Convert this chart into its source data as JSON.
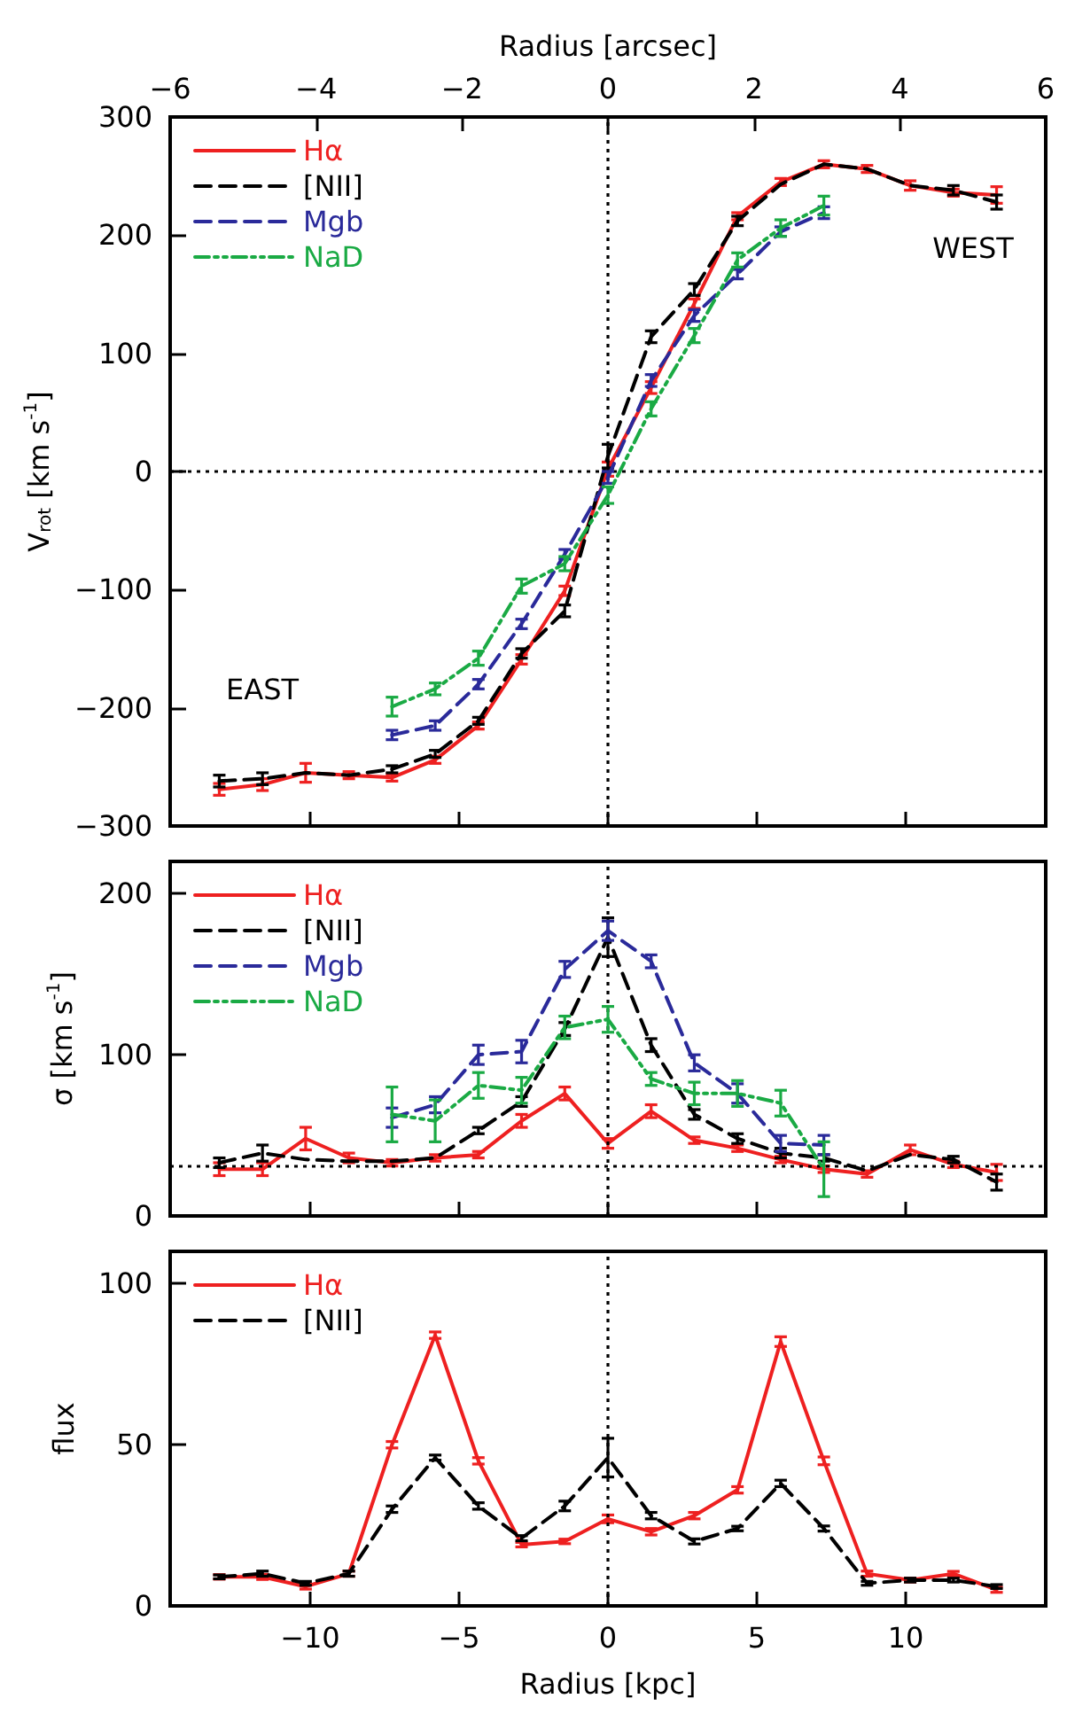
{
  "chart_data": [
    {
      "type": "line",
      "ylabel": "V$_{rot}$ [km s$^{-1}$]",
      "x2label": "Radius [arcsec]",
      "x": [
        -13.05,
        -11.6,
        -10.15,
        -8.7,
        -7.25,
        -5.8,
        -4.35,
        -2.9,
        -1.45,
        0,
        1.45,
        2.9,
        4.35,
        5.8,
        7.25,
        8.7,
        10.15,
        11.6,
        13.05
      ],
      "series": [
        {
          "name": "Hα",
          "color": "#ee2020",
          "line_style": "solid",
          "values": [
            -269,
            -265,
            -255,
            -257,
            -259,
            -244,
            -215,
            -159,
            -101,
            2,
            71,
            142,
            216,
            245,
            260,
            256,
            242,
            236,
            234
          ],
          "errors": [
            5,
            5,
            8,
            3,
            3,
            3,
            3,
            4,
            4,
            6,
            5,
            4,
            3,
            3,
            3,
            3,
            4,
            3,
            7
          ]
        },
        {
          "name": "[NII]",
          "color": "#000000",
          "line_style": "dashed",
          "values": [
            -262,
            -260,
            -255,
            -257,
            -252,
            -239,
            -211,
            -154,
            -118,
            13,
            114,
            154,
            212,
            243,
            260,
            256,
            242,
            238,
            228
          ],
          "errors": [
            5,
            5,
            null,
            null,
            3,
            3,
            3,
            4,
            5,
            10,
            5,
            5,
            4,
            null,
            null,
            null,
            null,
            4,
            6
          ]
        },
        {
          "name": "Mgb",
          "color": "#2a2a9a",
          "line_style": "dashed",
          "values": [
            null,
            null,
            null,
            null,
            -223,
            -215,
            -180,
            -129,
            -70,
            -5,
            77,
            132,
            167,
            203,
            219,
            null,
            null,
            null,
            null
          ],
          "errors": [
            null,
            null,
            null,
            null,
            4,
            4,
            4,
            4,
            4,
            5,
            5,
            5,
            4,
            4,
            5,
            null,
            null,
            null,
            null
          ]
        },
        {
          "name": "NaD",
          "color": "#1aaa44",
          "line_style": "dashdot",
          "values": [
            null,
            null,
            null,
            null,
            -199,
            -184,
            -158,
            -97,
            -78,
            -20,
            53,
            115,
            179,
            206,
            225,
            null,
            null,
            null,
            null
          ],
          "errors": [
            null,
            null,
            null,
            null,
            8,
            5,
            6,
            6,
            6,
            7,
            6,
            6,
            6,
            7,
            8,
            null,
            null,
            null,
            null
          ]
        }
      ],
      "xlim": [
        -14.7,
        14.7
      ],
      "xticks": [
        -10,
        -5,
        0,
        5,
        10
      ],
      "x2lim": [
        -6,
        6
      ],
      "x2ticks": [
        -6,
        -4,
        -2,
        0,
        2,
        4,
        6
      ],
      "ylim": [
        -300,
        300
      ],
      "yticks": [
        -300,
        -200,
        -100,
        0,
        100,
        200,
        300
      ],
      "tick_labels": "y",
      "ref_lines": [
        {
          "axis": "x",
          "value": 0,
          "line_style": "dotted"
        },
        {
          "axis": "y",
          "value": 0,
          "line_style": "dotted"
        }
      ],
      "annotations": [
        "EAST",
        "WEST"
      ],
      "legend": "top left",
      "marker": "none",
      "grid": false
    },
    {
      "type": "line",
      "ylabel": "σ [km s$^{-1}$]",
      "x": [
        -13.05,
        -11.6,
        -10.15,
        -8.7,
        -7.25,
        -5.8,
        -4.35,
        -2.9,
        -1.45,
        0,
        1.45,
        2.9,
        4.35,
        5.8,
        7.25,
        8.7,
        10.15,
        11.6,
        13.05
      ],
      "series": [
        {
          "name": "Hα",
          "color": "#ee2020",
          "line_style": "solid",
          "values": [
            29,
            29,
            48,
            36,
            33,
            36,
            38,
            59,
            76,
            45,
            65,
            47,
            42,
            35,
            29,
            26,
            41,
            32,
            27
          ],
          "errors": [
            4,
            4,
            7,
            3,
            2,
            2,
            2,
            4,
            4,
            3,
            4,
            2,
            2,
            2,
            2,
            2,
            3,
            2,
            5
          ]
        },
        {
          "name": "[NII]",
          "color": "#000000",
          "line_style": "dashed",
          "values": [
            33,
            39,
            35,
            34,
            34,
            36,
            53,
            71,
            116,
            173,
            106,
            63,
            48,
            39,
            36,
            28,
            38,
            35,
            21
          ],
          "errors": [
            3,
            5,
            null,
            null,
            null,
            null,
            2,
            3,
            4,
            12,
            4,
            3,
            3,
            3,
            2,
            null,
            null,
            2,
            5
          ]
        },
        {
          "name": "Mgb",
          "color": "#2a2a9a",
          "line_style": "dashed",
          "values": [
            null,
            null,
            null,
            null,
            61,
            69,
            100,
            102,
            153,
            177,
            158,
            95,
            76,
            45,
            44,
            null,
            null,
            null,
            null
          ],
          "errors": [
            null,
            null,
            null,
            null,
            6,
            5,
            6,
            7,
            5,
            6,
            4,
            5,
            6,
            5,
            6,
            null,
            null,
            null,
            null
          ]
        },
        {
          "name": "NaD",
          "color": "#1aaa44",
          "line_style": "dashdot",
          "values": [
            null,
            null,
            null,
            null,
            63,
            59,
            81,
            78,
            117,
            122,
            85,
            76,
            76,
            70,
            29,
            null,
            null,
            null,
            null
          ],
          "errors": [
            null,
            null,
            null,
            null,
            17,
            13,
            8,
            8,
            7,
            8,
            4,
            7,
            8,
            8,
            17,
            null,
            null,
            null,
            null
          ]
        }
      ],
      "xlim": [
        -14.7,
        14.7
      ],
      "xticks": [
        -10,
        -5,
        0,
        5,
        10
      ],
      "ylim": [
        0,
        220
      ],
      "yticks": [
        0,
        100,
        200
      ],
      "tick_labels": "y",
      "ref_lines": [
        {
          "axis": "x",
          "value": 0,
          "line_style": "dotted"
        },
        {
          "axis": "y",
          "value": 31,
          "line_style": "dotted"
        }
      ],
      "legend": "top left",
      "marker": "none",
      "grid": false
    },
    {
      "type": "line",
      "ylabel": "flux",
      "xlabel": "Radius [kpc]",
      "x": [
        -13.05,
        -11.6,
        -10.15,
        -8.7,
        -7.25,
        -5.8,
        -4.35,
        -2.9,
        -1.45,
        0,
        1.45,
        2.9,
        4.35,
        5.8,
        7.25,
        8.7,
        10.15,
        11.6,
        13.05
      ],
      "series": [
        {
          "name": "Hα",
          "color": "#ee2020",
          "line_style": "solid",
          "values": [
            9,
            9,
            6,
            10,
            50,
            84,
            45,
            19,
            20,
            27,
            23,
            28,
            36,
            82,
            45,
            10,
            8,
            10,
            5
          ],
          "errors": [
            0.7,
            0.8,
            0.8,
            0.8,
            1,
            1,
            1,
            0.7,
            0.7,
            1.2,
            1,
            1,
            1,
            1.5,
            1.2,
            0.8,
            0.6,
            0.7,
            0.8
          ]
        },
        {
          "name": "[NII]",
          "color": "#000000",
          "line_style": "dashed",
          "values": [
            9,
            10,
            7,
            10,
            30,
            46,
            31,
            21,
            31,
            46,
            28,
            20,
            24,
            38,
            24,
            7,
            8,
            8,
            6
          ],
          "errors": [
            0.6,
            0.8,
            0.6,
            0.8,
            1,
            0.8,
            1,
            0.8,
            1.5,
            6,
            1,
            0.8,
            0.7,
            1,
            0.8,
            0.6,
            0.6,
            0.6,
            0.6
          ]
        }
      ],
      "xlim": [
        -14.7,
        14.7
      ],
      "xticks": [
        -10,
        -5,
        0,
        5,
        10
      ],
      "ylim": [
        0,
        110
      ],
      "yticks": [
        0,
        50,
        100
      ],
      "ref_lines": [
        {
          "axis": "x",
          "value": 0,
          "line_style": "dotted"
        }
      ],
      "legend": "top left",
      "marker": "none",
      "grid": false
    }
  ]
}
